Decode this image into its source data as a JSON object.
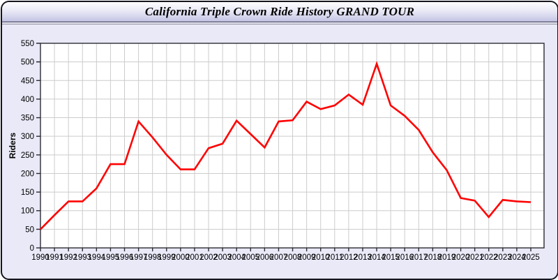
{
  "window": {
    "title": "California Triple Crown Ride History GRAND TOUR"
  },
  "chart_data": {
    "type": "line",
    "title": "California Triple Crown Ride History GRAND TOUR",
    "xlabel": "",
    "ylabel": "Riders",
    "x": [
      1990,
      1991,
      1992,
      1993,
      1994,
      1995,
      1996,
      1997,
      1998,
      1999,
      2000,
      2001,
      2002,
      2003,
      2004,
      2005,
      2006,
      2007,
      2008,
      2009,
      2010,
      2011,
      2012,
      2013,
      2014,
      2015,
      2016,
      2017,
      2018,
      2019,
      2020,
      2021,
      2022,
      2023,
      2024,
      2025
    ],
    "series": [
      {
        "name": "Riders",
        "color": "#ff0000",
        "values": [
          50,
          88,
          125,
          125,
          160,
          225,
          225,
          340,
          297,
          250,
          211,
          211,
          268,
          280,
          342,
          306,
          270,
          340,
          343,
          393,
          373,
          383,
          412,
          385,
          495,
          383,
          355,
          317,
          257,
          209,
          134,
          127,
          83,
          129,
          125,
          123
        ]
      }
    ],
    "ylim": [
      0,
      550
    ],
    "ytick_step": 50,
    "grid": true,
    "legend_position": "none",
    "colors": {
      "plot_background": "#ffffff",
      "panel_background": "#e9e9f8",
      "gridline": "#cccccc",
      "axis": "#2b2b33",
      "tick_text": "#000000"
    }
  }
}
